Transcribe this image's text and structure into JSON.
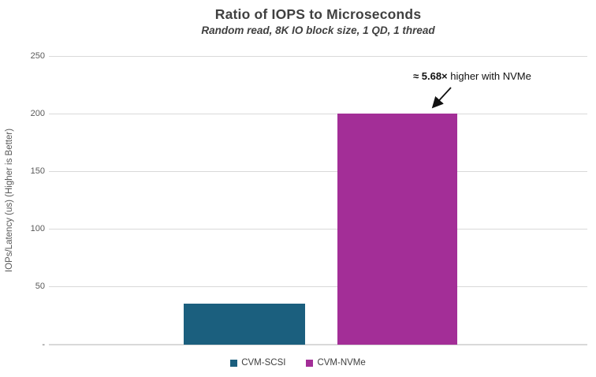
{
  "header": {
    "title": "Ratio of IOPS to Microseconds",
    "subtitle": "Random read, 8K IO block size, 1 QD, 1 thread"
  },
  "chart_data": {
    "type": "bar",
    "title": "Ratio of IOPS to Microseconds",
    "subtitle": "Random read, 8K IO block size, 1 QD, 1 thread",
    "categories": [
      "CVM-SCSI",
      "CVM-NVMe"
    ],
    "series": [
      {
        "name": "CVM-SCSI",
        "value": 35.2,
        "color": "#1B5F7E"
      },
      {
        "name": "CVM-NVMe",
        "value": 200,
        "color": "#A32E97"
      }
    ],
    "xlabel": "",
    "ylabel": "IOPs/Latency (us) (Higher is Better)",
    "ylim": [
      0,
      250
    ],
    "yticks": [
      0,
      50,
      100,
      150,
      200,
      250
    ],
    "ytick_labels": [
      "-",
      "50",
      "100",
      "150",
      "200",
      "250"
    ],
    "grid": true,
    "legend_position": "bottom",
    "annotation": "≈ 5.68× higher with NVMe"
  },
  "annotation": {
    "lead": "≈ 5.68×",
    "rest": " higher with NVMe"
  },
  "legend": {
    "items": [
      {
        "label": "CVM-SCSI",
        "color": "#1B5F7E"
      },
      {
        "label": "CVM-NVMe",
        "color": "#A32E97"
      }
    ]
  },
  "colors": {
    "gridline": "#d9d9d9",
    "axis_text": "#595959",
    "title_text": "#404040",
    "annotation_text": "#111111"
  }
}
